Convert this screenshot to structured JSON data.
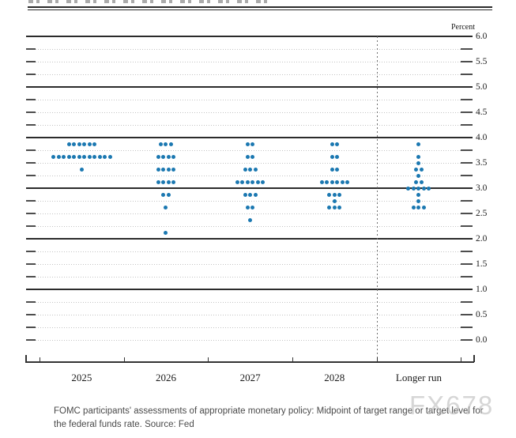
{
  "chart_data": {
    "type": "scatter",
    "subtype": "fomc-dot-plot",
    "y_axis": {
      "title": "Percent",
      "min": 0.0,
      "max": 6.0,
      "gridline_step": 0.25,
      "solid_gridline_values": [
        1.0,
        2.0,
        3.0,
        4.0,
        5.0,
        6.0
      ],
      "tick_labels": [
        {
          "value": 6.0,
          "label": "6.0"
        },
        {
          "value": 5.5,
          "label": "5.5"
        },
        {
          "value": 5.0,
          "label": "5.0"
        },
        {
          "value": 4.5,
          "label": "4.5"
        },
        {
          "value": 4.0,
          "label": "4.0"
        },
        {
          "value": 3.5,
          "label": "3.5"
        },
        {
          "value": 3.0,
          "label": "3.0"
        },
        {
          "value": 2.5,
          "label": "2.5"
        },
        {
          "value": 2.0,
          "label": "2.0"
        },
        {
          "value": 1.5,
          "label": "1.5"
        },
        {
          "value": 1.0,
          "label": "1.0"
        },
        {
          "value": 0.5,
          "label": "0.5"
        },
        {
          "value": 0.0,
          "label": "0.0"
        }
      ]
    },
    "x_axis": {
      "categories": [
        "2025",
        "2026",
        "2027",
        "2028",
        "Longer run"
      ]
    },
    "separator_before_category": "Longer run",
    "dot_color": "#1b78b1",
    "series": [
      {
        "category": "2025",
        "dots": [
          {
            "rate": 3.875,
            "count": 6
          },
          {
            "rate": 3.625,
            "count": 12
          },
          {
            "rate": 3.375,
            "count": 1
          }
        ]
      },
      {
        "category": "2026",
        "dots": [
          {
            "rate": 3.875,
            "count": 3
          },
          {
            "rate": 3.625,
            "count": 4
          },
          {
            "rate": 3.375,
            "count": 4
          },
          {
            "rate": 3.125,
            "count": 4
          },
          {
            "rate": 2.875,
            "count": 2
          },
          {
            "rate": 2.625,
            "count": 1
          },
          {
            "rate": 2.125,
            "count": 1
          }
        ]
      },
      {
        "category": "2027",
        "dots": [
          {
            "rate": 3.875,
            "count": 2
          },
          {
            "rate": 3.625,
            "count": 2
          },
          {
            "rate": 3.375,
            "count": 3
          },
          {
            "rate": 3.125,
            "count": 6
          },
          {
            "rate": 2.875,
            "count": 3
          },
          {
            "rate": 2.625,
            "count": 2
          },
          {
            "rate": 2.375,
            "count": 1
          }
        ]
      },
      {
        "category": "2028",
        "dots": [
          {
            "rate": 3.875,
            "count": 2
          },
          {
            "rate": 3.625,
            "count": 2
          },
          {
            "rate": 3.375,
            "count": 2
          },
          {
            "rate": 3.125,
            "count": 6
          },
          {
            "rate": 2.875,
            "count": 3
          },
          {
            "rate": 2.75,
            "count": 1
          },
          {
            "rate": 2.625,
            "count": 3
          }
        ]
      },
      {
        "category": "Longer run",
        "dots": [
          {
            "rate": 3.875,
            "count": 1
          },
          {
            "rate": 3.625,
            "count": 1
          },
          {
            "rate": 3.5,
            "count": 1
          },
          {
            "rate": 3.375,
            "count": 2
          },
          {
            "rate": 3.25,
            "count": 1
          },
          {
            "rate": 3.125,
            "count": 2
          },
          {
            "rate": 3.0,
            "count": 5
          },
          {
            "rate": 2.875,
            "count": 1
          },
          {
            "rate": 2.75,
            "count": 1
          },
          {
            "rate": 2.625,
            "count": 3
          }
        ]
      }
    ]
  },
  "caption": {
    "text": "FOMC participants' assessments of appropriate monetary policy: Midpoint of target range or target level for the federal funds rate. Source: Fed"
  },
  "watermark": {
    "text": "FX678"
  }
}
